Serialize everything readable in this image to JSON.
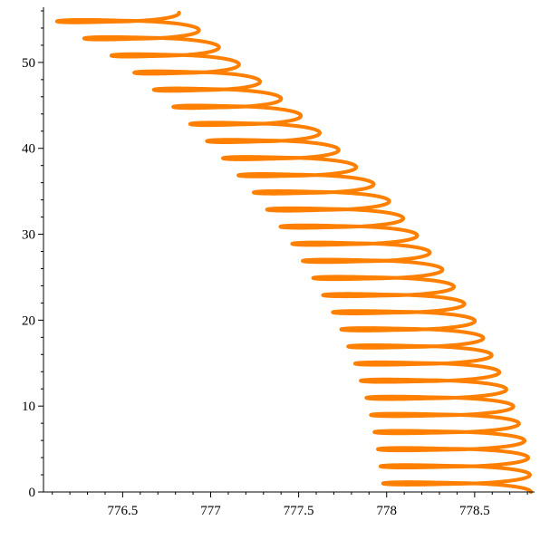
{
  "chart_data": {
    "type": "line",
    "title": "",
    "xlabel": "",
    "ylabel": "",
    "xlim": [
      776.05,
      778.82
    ],
    "ylim": [
      0,
      56
    ],
    "x_ticks": [
      {
        "value": 776.5,
        "label": "776.5"
      },
      {
        "value": 777,
        "label": "777"
      },
      {
        "value": 777.5,
        "label": "777.5"
      },
      {
        "value": 778,
        "label": "778"
      },
      {
        "value": 778.5,
        "label": "778.5"
      }
    ],
    "y_ticks": [
      {
        "value": 0,
        "label": "0"
      },
      {
        "value": 10,
        "label": "10"
      },
      {
        "value": 20,
        "label": "20"
      },
      {
        "value": 30,
        "label": "30"
      },
      {
        "value": 40,
        "label": "40"
      },
      {
        "value": 50,
        "label": "50"
      }
    ],
    "grid": false,
    "series": [
      {
        "color": "#ff8000",
        "style": "coil",
        "loops": 28,
        "y_start": 0,
        "y_end": 55.8,
        "points": [
          {
            "y": 0.9,
            "x_left": 777.98,
            "x_right": 778.82
          },
          {
            "y": 5.0,
            "x_left": 777.95,
            "x_right": 778.8
          },
          {
            "y": 10.0,
            "x_left": 777.9,
            "x_right": 778.72
          },
          {
            "y": 15.0,
            "x_left": 777.82,
            "x_right": 778.62
          },
          {
            "y": 20.0,
            "x_left": 777.72,
            "x_right": 778.5
          },
          {
            "y": 25.0,
            "x_left": 777.58,
            "x_right": 778.35
          },
          {
            "y": 30.0,
            "x_left": 777.43,
            "x_right": 778.17
          },
          {
            "y": 35.0,
            "x_left": 777.24,
            "x_right": 777.97
          },
          {
            "y": 40.0,
            "x_left": 777.02,
            "x_right": 777.72
          },
          {
            "y": 45.0,
            "x_left": 776.78,
            "x_right": 777.45
          },
          {
            "y": 50.0,
            "x_left": 776.5,
            "x_right": 777.15
          },
          {
            "y": 55.8,
            "x_left": 776.05,
            "x_right": 776.82
          }
        ]
      }
    ]
  }
}
